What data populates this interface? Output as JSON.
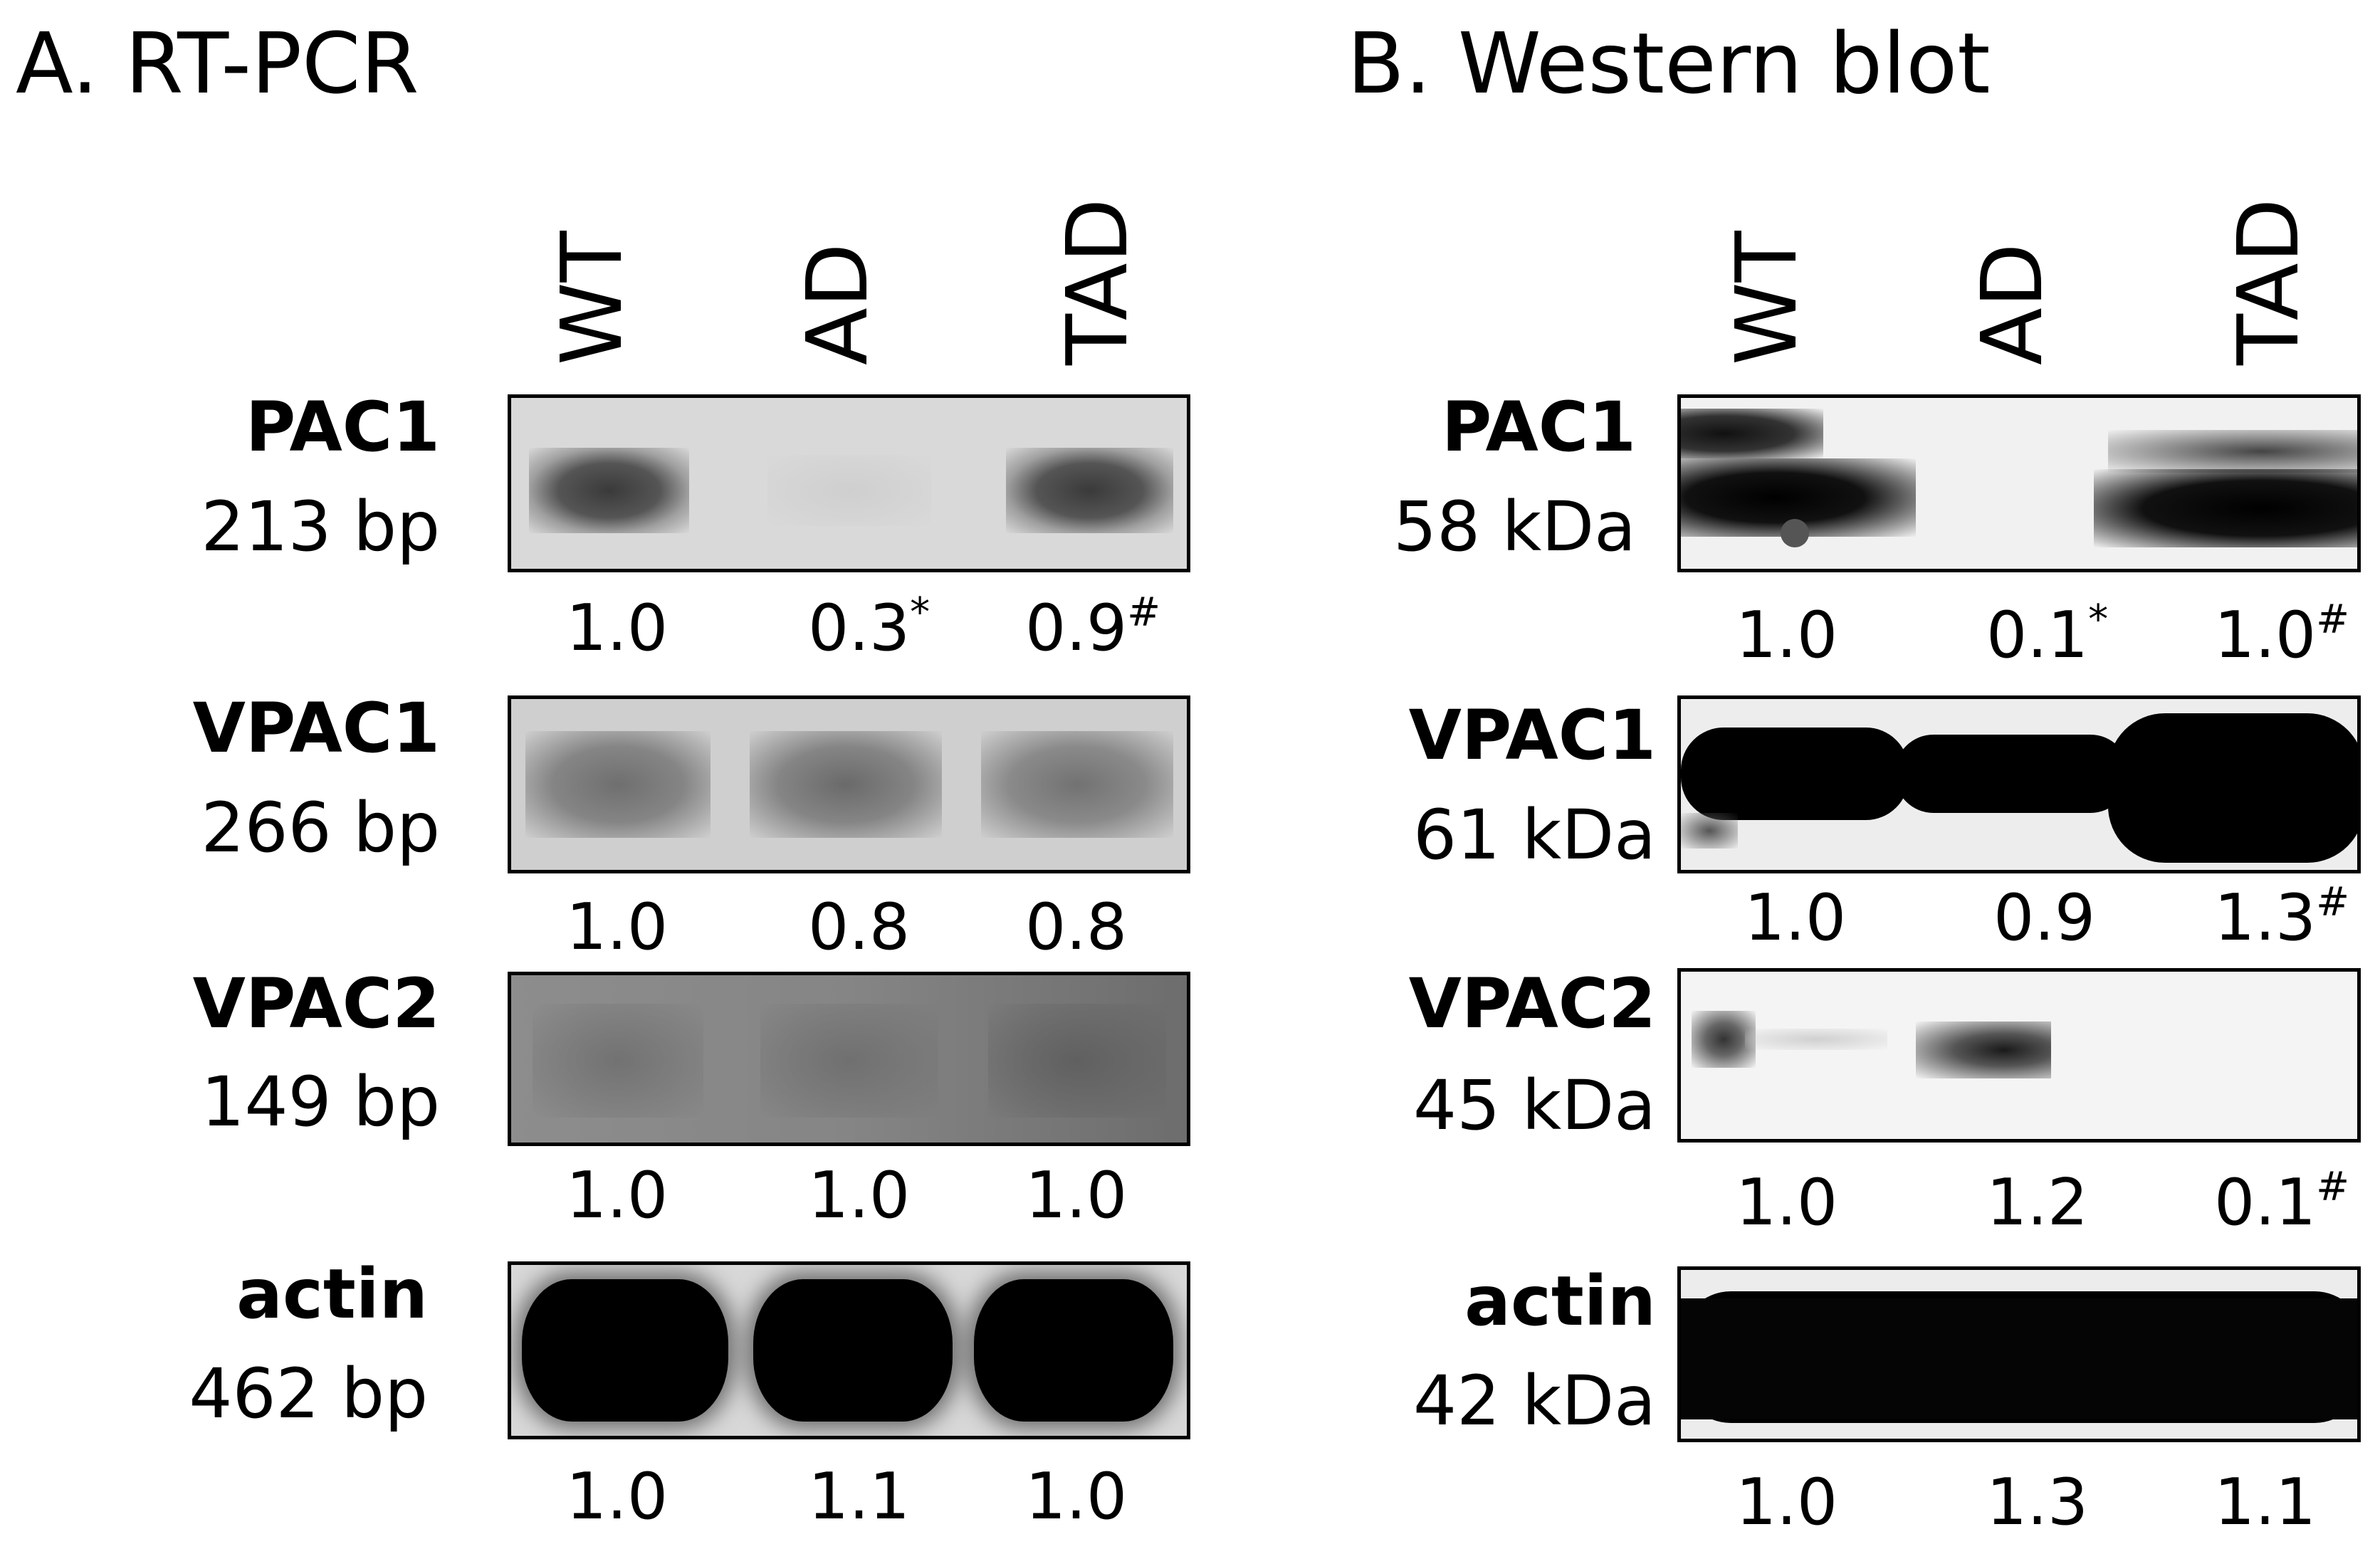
{
  "panels": {
    "a": {
      "title": "A. RT-PCR",
      "lanes": [
        "WT",
        "AD",
        "TAD"
      ],
      "rows": [
        {
          "name": "PAC1",
          "size": "213 bp",
          "values": [
            {
              "v": "1.0",
              "m": ""
            },
            {
              "v": "0.3",
              "m": "*"
            },
            {
              "v": "0.9",
              "m": "#"
            }
          ]
        },
        {
          "name": "VPAC1",
          "size": "266 bp",
          "values": [
            {
              "v": "1.0",
              "m": ""
            },
            {
              "v": "0.8",
              "m": ""
            },
            {
              "v": "0.8",
              "m": ""
            }
          ]
        },
        {
          "name": "VPAC2",
          "size": "149 bp",
          "values": [
            {
              "v": "1.0",
              "m": ""
            },
            {
              "v": "1.0",
              "m": ""
            },
            {
              "v": "1.0",
              "m": ""
            }
          ]
        },
        {
          "name": "actin",
          "size": "462 bp",
          "values": [
            {
              "v": "1.0",
              "m": ""
            },
            {
              "v": "1.1",
              "m": ""
            },
            {
              "v": "1.0",
              "m": ""
            }
          ]
        }
      ]
    },
    "b": {
      "title": "B. Western blot",
      "lanes": [
        "WT",
        "AD",
        "TAD"
      ],
      "rows": [
        {
          "name": "PAC1",
          "size": "58 kDa",
          "values": [
            {
              "v": "1.0",
              "m": ""
            },
            {
              "v": "0.1",
              "m": "*"
            },
            {
              "v": "1.0",
              "m": "#"
            }
          ]
        },
        {
          "name": "VPAC1",
          "size": "61 kDa",
          "values": [
            {
              "v": "1.0",
              "m": ""
            },
            {
              "v": "0.9",
              "m": ""
            },
            {
              "v": "1.3",
              "m": "#"
            }
          ]
        },
        {
          "name": "VPAC2",
          "size": "45 kDa",
          "values": [
            {
              "v": "1.0",
              "m": ""
            },
            {
              "v": "1.2",
              "m": ""
            },
            {
              "v": "0.1",
              "m": "#"
            }
          ]
        },
        {
          "name": "actin",
          "size": "42 kDa",
          "values": [
            {
              "v": "1.0",
              "m": ""
            },
            {
              "v": "1.3",
              "m": ""
            },
            {
              "v": "1.1",
              "m": ""
            }
          ]
        }
      ]
    }
  }
}
